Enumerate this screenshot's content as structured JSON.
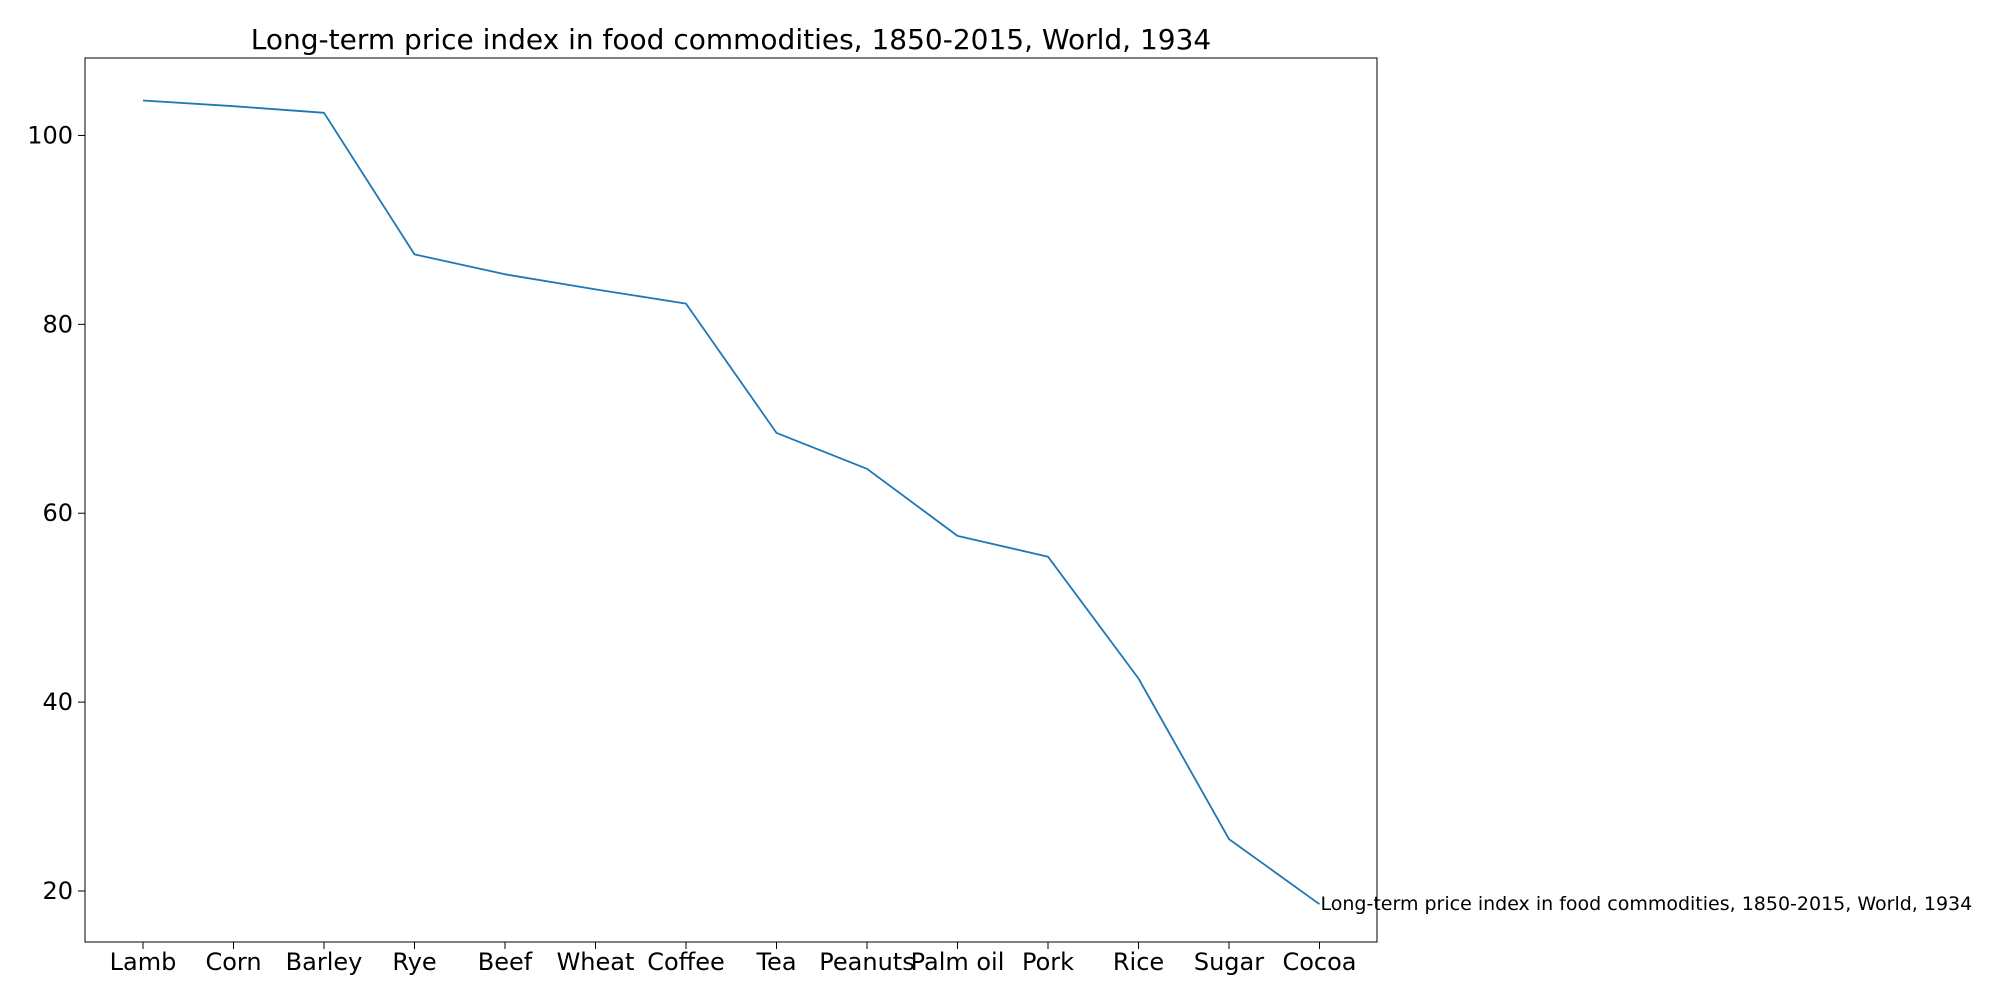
{
  "chart_data": {
    "type": "line",
    "title": "Long-term price index in food commodities, 1850-2015, World, 1934",
    "xlabel": "",
    "ylabel": "",
    "categories": [
      "Lamb",
      "Corn",
      "Barley",
      "Rye",
      "Beef",
      "Wheat",
      "Coffee",
      "Tea",
      "Peanuts",
      "Palm oil",
      "Pork",
      "Rice",
      "Sugar",
      "Cocoa"
    ],
    "series": [
      {
        "name": "Long-term price index in food commodities, 1850-2015, World, 1934",
        "values": [
          103.7,
          103.1,
          102.4,
          87.4,
          85.3,
          83.7,
          82.2,
          68.5,
          64.7,
          57.6,
          55.4,
          42.5,
          25.5,
          18.6
        ],
        "color": "#1f77b4"
      }
    ],
    "ylim": [
      14.6,
      108.2
    ],
    "yticks": [
      20,
      40,
      60,
      80,
      100
    ],
    "grid": false,
    "legend": "none"
  }
}
